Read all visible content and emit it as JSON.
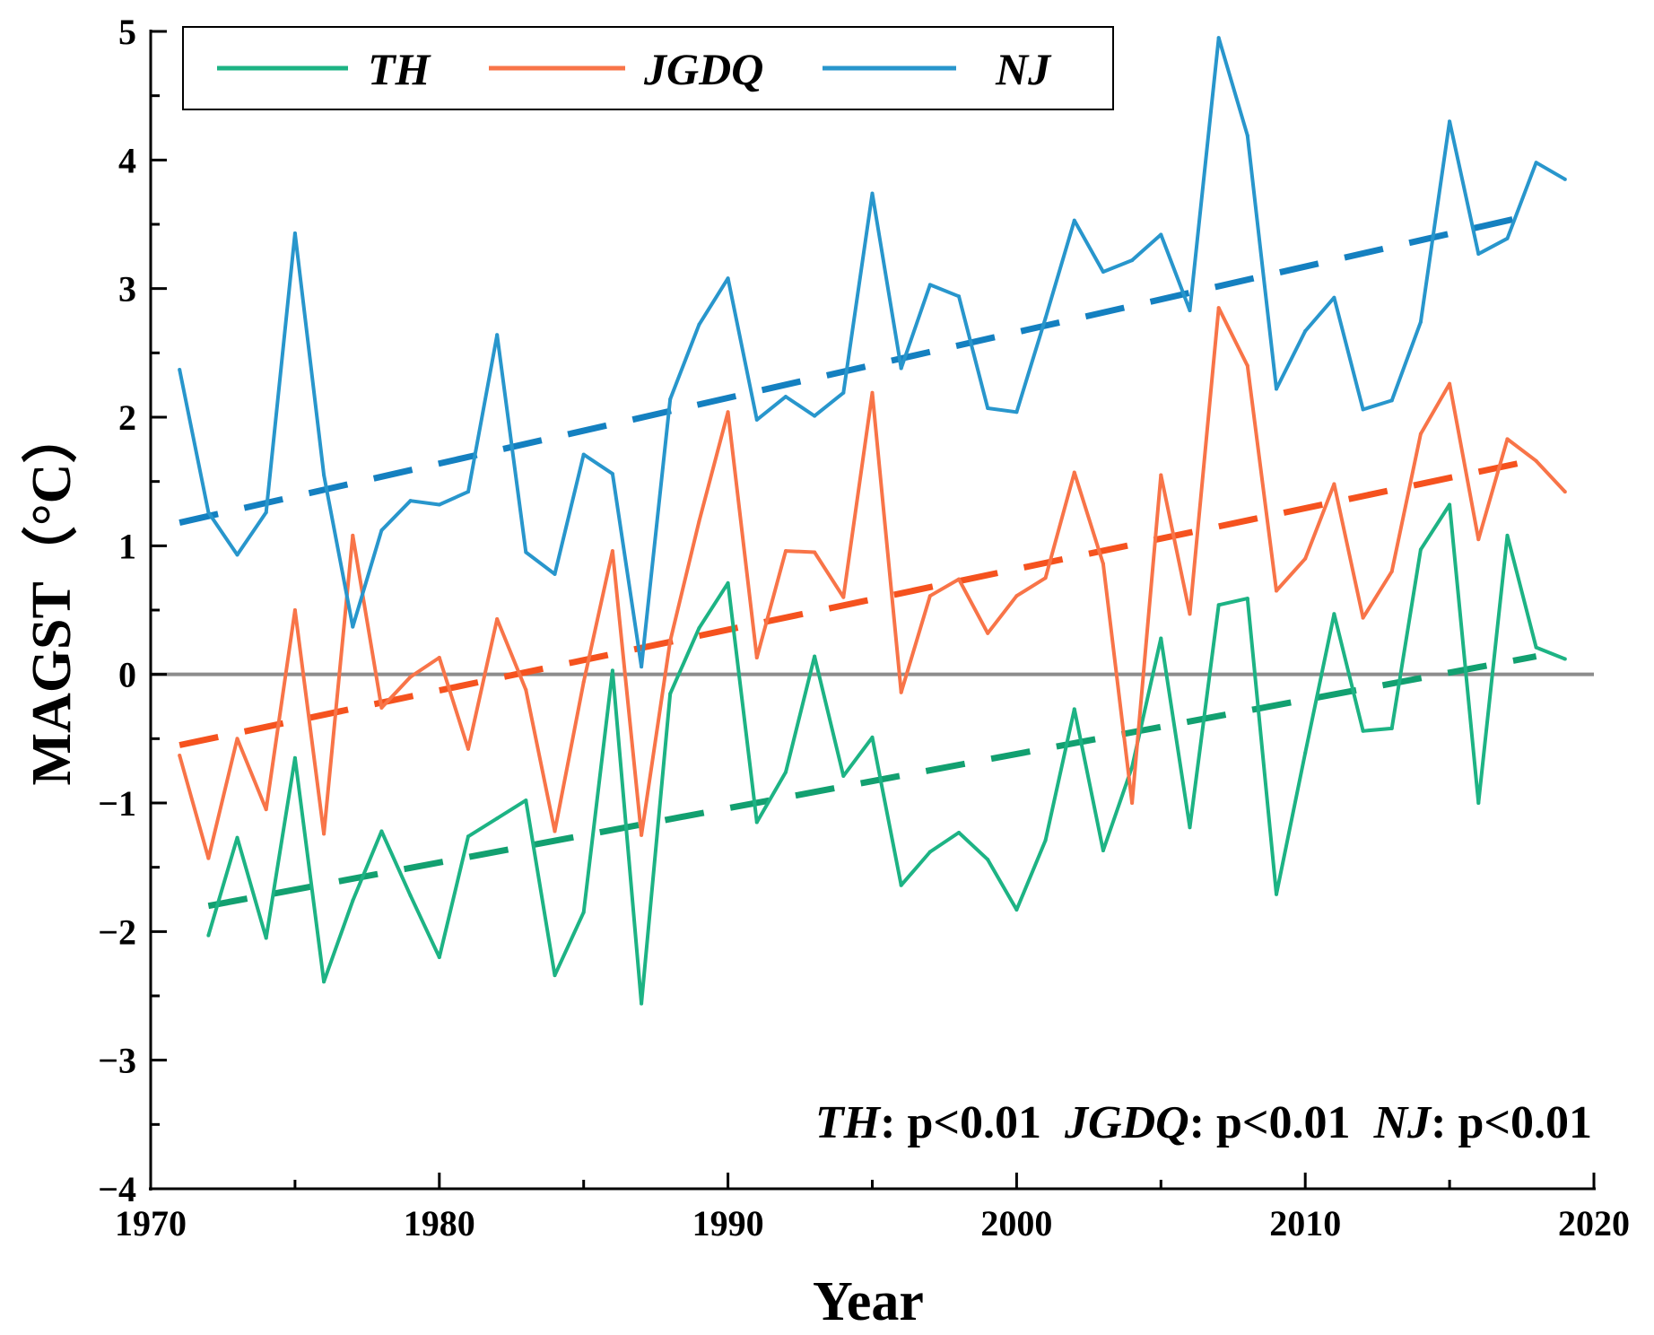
{
  "chart_data": {
    "type": "line",
    "xlabel": "Year",
    "ylabel": "MAGST（°C）",
    "xlim": [
      1970,
      2020
    ],
    "ylim": [
      -4,
      5
    ],
    "xticks": [
      "1970",
      "1980",
      "1990",
      "2000",
      "2010",
      "2020"
    ],
    "yticks": [
      "−4",
      "−3",
      "−2",
      "−1",
      "0",
      "1",
      "2",
      "3",
      "4",
      "5"
    ],
    "reference_line": 0,
    "legend_position": "top-left",
    "series": [
      {
        "name": "TH",
        "color": "#1db384",
        "trend_color": "#12a070",
        "x": [
          1972,
          1973,
          1974,
          1975,
          1976,
          1977,
          1978,
          1979,
          1980,
          1981,
          1982,
          1983,
          1984,
          1985,
          1986,
          1987,
          1988,
          1989,
          1990,
          1991,
          1992,
          1993,
          1994,
          1995,
          1996,
          1997,
          1998,
          1999,
          2000,
          2001,
          2002,
          2003,
          2004,
          2005,
          2006,
          2007,
          2008,
          2009,
          2010,
          2011,
          2012,
          2013,
          2014,
          2015,
          2016,
          2017,
          2018,
          2019
        ],
        "values": [
          -2.03,
          -1.27,
          -2.05,
          -0.65,
          -2.39,
          -1.76,
          -1.22,
          -1.72,
          -2.2,
          -1.26,
          -1.12,
          -0.98,
          -2.34,
          -1.85,
          0.03,
          -2.56,
          -0.15,
          0.36,
          0.71,
          -1.15,
          -0.76,
          0.14,
          -0.79,
          -0.49,
          -1.64,
          -1.38,
          -1.23,
          -1.44,
          -1.83,
          -1.29,
          -0.27,
          -1.37,
          -0.72,
          0.28,
          -1.19,
          0.54,
          0.59,
          -1.71,
          -0.61,
          0.47,
          -0.44,
          -0.42,
          0.97,
          1.32,
          -1.0,
          1.08,
          0.21,
          0.12
        ],
        "trend": {
          "x": [
            1972,
            2018
          ],
          "values": [
            -1.8,
            0.14
          ]
        }
      },
      {
        "name": "JGDQ",
        "color": "#f87448",
        "trend_color": "#f5521e",
        "x": [
          1971,
          1972,
          1973,
          1974,
          1975,
          1976,
          1977,
          1978,
          1979,
          1980,
          1981,
          1982,
          1983,
          1984,
          1985,
          1986,
          1987,
          1988,
          1989,
          1990,
          1991,
          1992,
          1993,
          1994,
          1995,
          1996,
          1997,
          1998,
          1999,
          2000,
          2001,
          2002,
          2003,
          2004,
          2005,
          2006,
          2007,
          2008,
          2009,
          2010,
          2011,
          2012,
          2013,
          2014,
          2015,
          2016,
          2017,
          2018,
          2019
        ],
        "values": [
          -0.63,
          -1.43,
          -0.5,
          -1.05,
          0.5,
          -1.24,
          1.08,
          -0.26,
          -0.02,
          0.13,
          -0.58,
          0.43,
          -0.12,
          -1.22,
          -0.06,
          0.96,
          -1.25,
          0.26,
          1.19,
          2.04,
          0.13,
          0.96,
          0.95,
          0.6,
          2.19,
          -0.14,
          0.61,
          0.74,
          0.32,
          0.61,
          0.75,
          1.57,
          0.86,
          -1.0,
          1.55,
          0.47,
          2.85,
          2.4,
          0.65,
          0.9,
          1.48,
          0.44,
          0.8,
          1.87,
          2.26,
          1.05,
          1.83,
          1.66,
          1.42
        ],
        "trend": {
          "x": [
            1971,
            2018
          ],
          "values": [
            -0.55,
            1.67
          ]
        }
      },
      {
        "name": "NJ",
        "color": "#2896cc",
        "trend_color": "#1480c0",
        "x": [
          1971,
          1972,
          1973,
          1974,
          1975,
          1976,
          1977,
          1978,
          1979,
          1980,
          1981,
          1982,
          1983,
          1984,
          1985,
          1986,
          1987,
          1988,
          1989,
          1990,
          1991,
          1992,
          1993,
          1994,
          1995,
          1996,
          1997,
          1998,
          1999,
          2000,
          2001,
          2002,
          2003,
          2004,
          2005,
          2006,
          2007,
          2008,
          2009,
          2010,
          2011,
          2012,
          2013,
          2014,
          2015,
          2016,
          2017,
          2018,
          2019
        ],
        "values": [
          2.37,
          1.26,
          0.93,
          1.26,
          3.43,
          1.55,
          0.37,
          1.12,
          1.35,
          1.32,
          1.42,
          2.64,
          0.95,
          0.78,
          1.71,
          1.56,
          0.06,
          2.14,
          2.72,
          3.08,
          1.98,
          2.16,
          2.01,
          2.19,
          3.74,
          2.38,
          3.03,
          2.94,
          2.07,
          2.04,
          2.77,
          3.53,
          3.13,
          3.22,
          3.42,
          2.83,
          4.95,
          4.19,
          2.22,
          2.67,
          2.93,
          2.06,
          2.13,
          2.74,
          4.3,
          3.27,
          3.39,
          3.98,
          3.85
        ],
        "trend": {
          "x": [
            1971,
            2018
          ],
          "values": [
            1.18,
            3.58
          ]
        }
      }
    ],
    "annotation": [
      {
        "series": "TH",
        "text": ": p<0.01"
      },
      {
        "series": "JGDQ",
        "text": ": p<0.01"
      },
      {
        "series": "NJ",
        "text": ": p<0.01"
      }
    ],
    "zero_line_color": "#8c8c8c"
  }
}
